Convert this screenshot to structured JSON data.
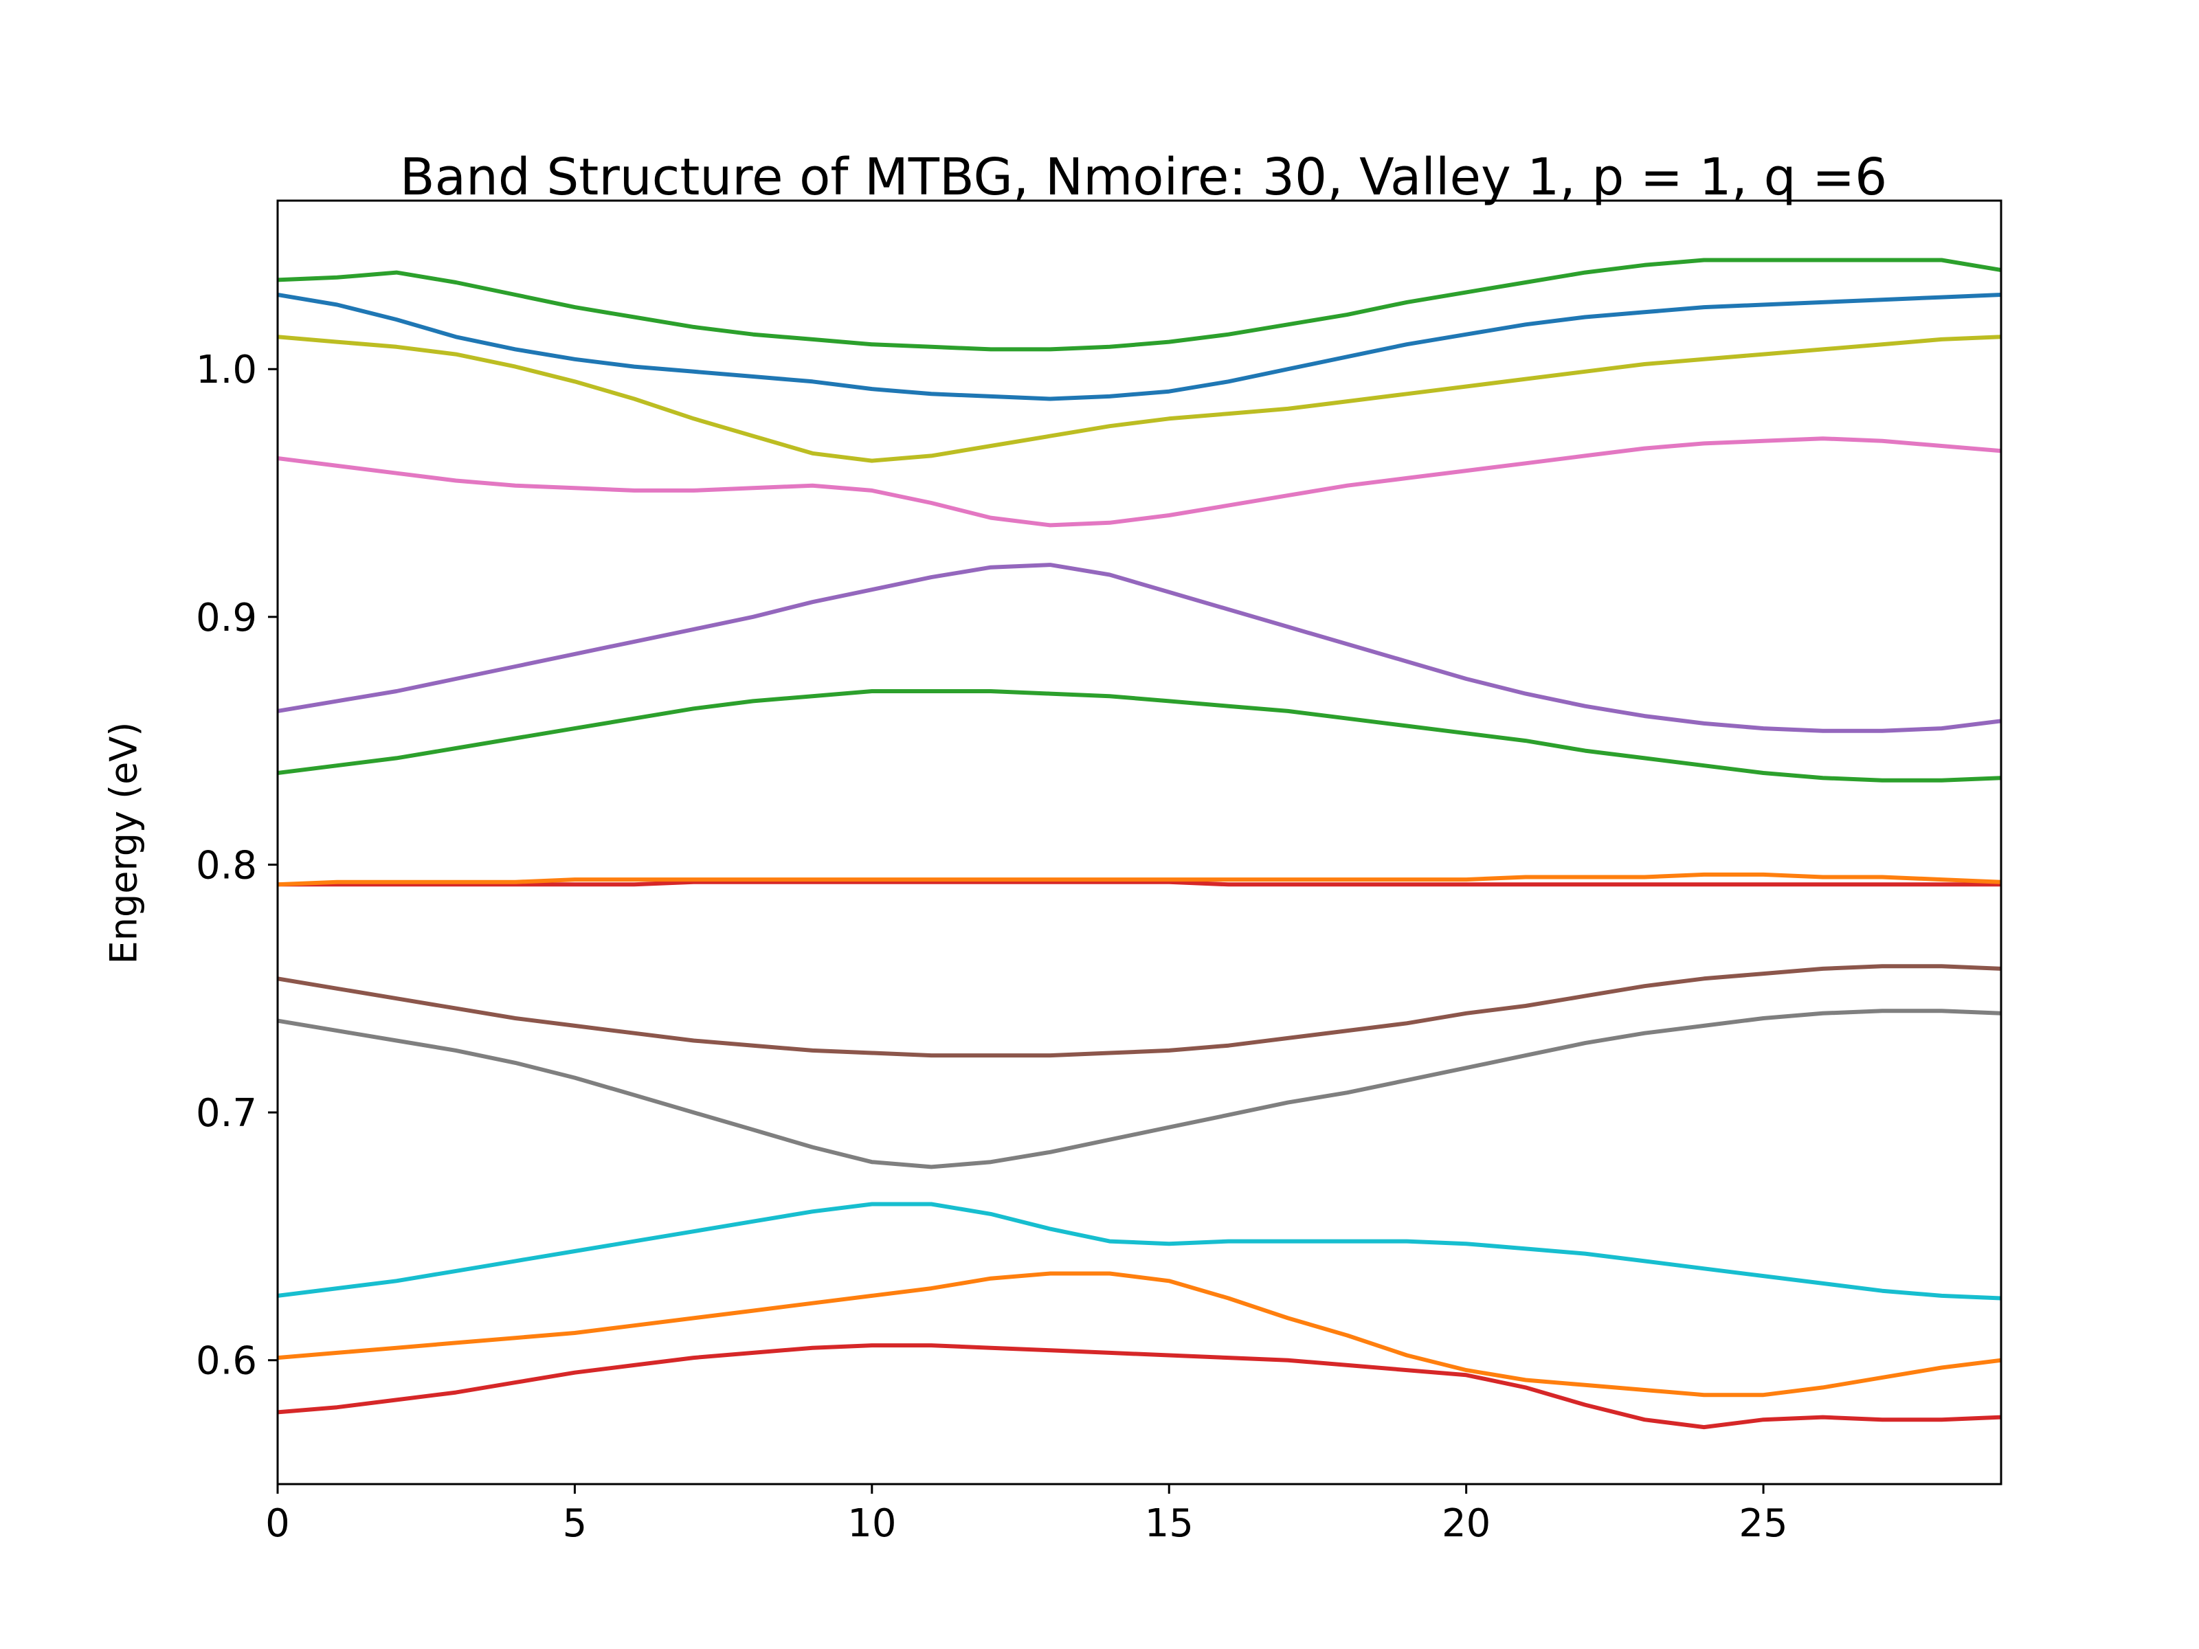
{
  "chart_data": {
    "type": "line",
    "title": "Band Structure of MTBG, Nmoire: 30, Valley 1, p = 1, q =6",
    "xlabel": "",
    "ylabel": "Engergy (eV)",
    "xlim": [
      0,
      29
    ],
    "ylim": [
      0.55,
      1.068
    ],
    "xticks": [
      "0",
      "5",
      "10",
      "15",
      "20",
      "25"
    ],
    "yticks": [
      "0.6",
      "0.7",
      "0.8",
      "0.9",
      "1.0"
    ],
    "x": [
      0,
      1,
      2,
      3,
      4,
      5,
      6,
      7,
      8,
      9,
      10,
      11,
      12,
      13,
      14,
      15,
      16,
      17,
      18,
      19,
      20,
      21,
      22,
      23,
      24,
      25,
      26,
      27,
      28,
      29
    ],
    "series": [
      {
        "color": "#d62728",
        "values": [
          0.579,
          0.581,
          0.584,
          0.587,
          0.591,
          0.595,
          0.598,
          0.601,
          0.603,
          0.605,
          0.606,
          0.606,
          0.605,
          0.604,
          0.603,
          0.602,
          0.601,
          0.6,
          0.598,
          0.596,
          0.594,
          0.589,
          0.582,
          0.576,
          0.573,
          0.576,
          0.577,
          0.576,
          0.576,
          0.577
        ]
      },
      {
        "color": "#ff7f0e",
        "values": [
          0.601,
          0.603,
          0.605,
          0.607,
          0.609,
          0.611,
          0.614,
          0.617,
          0.62,
          0.623,
          0.626,
          0.629,
          0.633,
          0.635,
          0.635,
          0.632,
          0.625,
          0.617,
          0.61,
          0.602,
          0.596,
          0.592,
          0.59,
          0.588,
          0.586,
          0.586,
          0.589,
          0.593,
          0.597,
          0.6
        ]
      },
      {
        "color": "#17becf",
        "values": [
          0.626,
          0.629,
          0.632,
          0.636,
          0.64,
          0.644,
          0.648,
          0.652,
          0.656,
          0.66,
          0.663,
          0.663,
          0.659,
          0.653,
          0.648,
          0.647,
          0.648,
          0.648,
          0.648,
          0.648,
          0.647,
          0.645,
          0.643,
          0.64,
          0.637,
          0.634,
          0.631,
          0.628,
          0.626,
          0.625
        ]
      },
      {
        "color": "#7f7f7f",
        "values": [
          0.737,
          0.733,
          0.729,
          0.725,
          0.72,
          0.714,
          0.707,
          0.7,
          0.693,
          0.686,
          0.68,
          0.678,
          0.68,
          0.684,
          0.689,
          0.694,
          0.699,
          0.704,
          0.708,
          0.713,
          0.718,
          0.723,
          0.728,
          0.732,
          0.735,
          0.738,
          0.74,
          0.741,
          0.741,
          0.74
        ]
      },
      {
        "color": "#8c564b",
        "values": [
          0.754,
          0.75,
          0.746,
          0.742,
          0.738,
          0.735,
          0.732,
          0.729,
          0.727,
          0.725,
          0.724,
          0.723,
          0.723,
          0.723,
          0.724,
          0.725,
          0.727,
          0.73,
          0.733,
          0.736,
          0.74,
          0.743,
          0.747,
          0.751,
          0.754,
          0.756,
          0.758,
          0.759,
          0.759,
          0.758
        ]
      },
      {
        "color": "#d62728",
        "values": [
          0.792,
          0.792,
          0.792,
          0.792,
          0.792,
          0.792,
          0.792,
          0.793,
          0.793,
          0.793,
          0.793,
          0.793,
          0.793,
          0.793,
          0.793,
          0.793,
          0.792,
          0.792,
          0.792,
          0.792,
          0.792,
          0.792,
          0.792,
          0.792,
          0.792,
          0.792,
          0.792,
          0.792,
          0.792,
          0.792
        ]
      },
      {
        "color": "#ff7f0e",
        "values": [
          0.792,
          0.793,
          0.793,
          0.793,
          0.793,
          0.794,
          0.794,
          0.794,
          0.794,
          0.794,
          0.794,
          0.794,
          0.794,
          0.794,
          0.794,
          0.794,
          0.794,
          0.794,
          0.794,
          0.794,
          0.794,
          0.795,
          0.795,
          0.795,
          0.796,
          0.796,
          0.795,
          0.795,
          0.794,
          0.793
        ]
      },
      {
        "color": "#2ca02c",
        "values": [
          0.837,
          0.84,
          0.843,
          0.847,
          0.851,
          0.855,
          0.859,
          0.863,
          0.866,
          0.868,
          0.87,
          0.87,
          0.87,
          0.869,
          0.868,
          0.866,
          0.864,
          0.862,
          0.859,
          0.856,
          0.853,
          0.85,
          0.846,
          0.843,
          0.84,
          0.837,
          0.835,
          0.834,
          0.834,
          0.835
        ]
      },
      {
        "color": "#9467bd",
        "values": [
          0.862,
          0.866,
          0.87,
          0.875,
          0.88,
          0.885,
          0.89,
          0.895,
          0.9,
          0.906,
          0.911,
          0.916,
          0.92,
          0.921,
          0.917,
          0.91,
          0.903,
          0.896,
          0.889,
          0.882,
          0.875,
          0.869,
          0.864,
          0.86,
          0.857,
          0.855,
          0.854,
          0.854,
          0.855,
          0.858
        ]
      },
      {
        "color": "#e377c2",
        "values": [
          0.964,
          0.961,
          0.958,
          0.955,
          0.953,
          0.952,
          0.951,
          0.951,
          0.952,
          0.953,
          0.951,
          0.946,
          0.94,
          0.937,
          0.938,
          0.941,
          0.945,
          0.949,
          0.953,
          0.956,
          0.959,
          0.962,
          0.965,
          0.968,
          0.97,
          0.971,
          0.972,
          0.971,
          0.969,
          0.967
        ]
      },
      {
        "color": "#bcbd22",
        "values": [
          1.013,
          1.011,
          1.009,
          1.006,
          1.001,
          0.995,
          0.988,
          0.98,
          0.973,
          0.966,
          0.963,
          0.965,
          0.969,
          0.973,
          0.977,
          0.98,
          0.982,
          0.984,
          0.987,
          0.99,
          0.993,
          0.996,
          0.999,
          1.002,
          1.004,
          1.006,
          1.008,
          1.01,
          1.012,
          1.013
        ]
      },
      {
        "color": "#1f77b4",
        "values": [
          1.03,
          1.026,
          1.02,
          1.013,
          1.008,
          1.004,
          1.001,
          0.999,
          0.997,
          0.995,
          0.992,
          0.99,
          0.989,
          0.988,
          0.989,
          0.991,
          0.995,
          1.0,
          1.005,
          1.01,
          1.014,
          1.018,
          1.021,
          1.023,
          1.025,
          1.026,
          1.027,
          1.028,
          1.029,
          1.03
        ]
      },
      {
        "color": "#2ca02c",
        "values": [
          1.036,
          1.037,
          1.039,
          1.035,
          1.03,
          1.025,
          1.021,
          1.017,
          1.014,
          1.012,
          1.01,
          1.009,
          1.008,
          1.008,
          1.009,
          1.011,
          1.014,
          1.018,
          1.022,
          1.027,
          1.031,
          1.035,
          1.039,
          1.042,
          1.044,
          1.044,
          1.044,
          1.044,
          1.044,
          1.04
        ]
      }
    ]
  }
}
